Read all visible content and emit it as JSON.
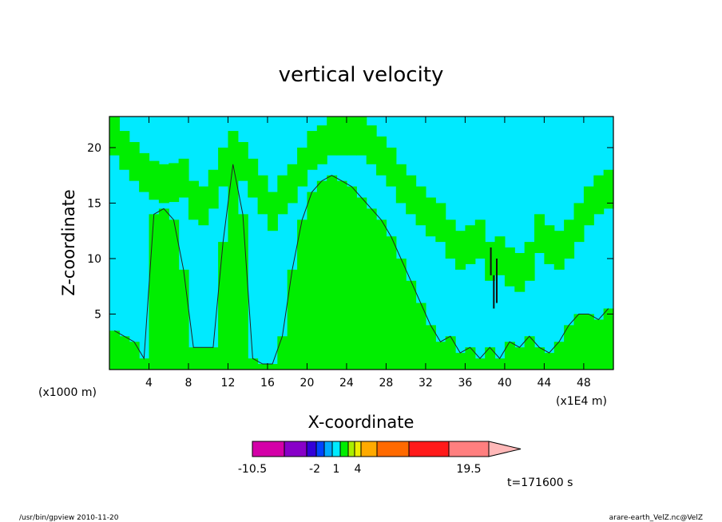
{
  "chart_data": {
    "type": "heatmap",
    "title": "vertical velocity",
    "xlabel": "X-coordinate",
    "ylabel": "Z-coordinate",
    "x_unit_left": "(x1000 m)",
    "x_unit_right": "(x1E4 m)",
    "xlim": [
      0,
      51
    ],
    "ylim": [
      0,
      22.8
    ],
    "xticks": [
      "4",
      "8",
      "12",
      "16",
      "20",
      "24",
      "28",
      "32",
      "36",
      "40",
      "44",
      "48"
    ],
    "yticks": [
      "5",
      "10",
      "15",
      "20"
    ],
    "colors": {
      "negative": "#00eaff",
      "positive": "#00ee00",
      "strong": "#111111",
      "contour": "#222222"
    },
    "columns": [
      {
        "x": 0.5,
        "top": 3.5,
        "tops": [
          22.8
        ]
      },
      {
        "x": 1.5,
        "top": 3.0,
        "tops": [
          21.5
        ]
      },
      {
        "x": 2.5,
        "top": 2.5,
        "tops": [
          20.5
        ]
      },
      {
        "x": 3.5,
        "top": 1.0,
        "tops": [
          19.5
        ]
      },
      {
        "x": 4.5,
        "top": 14.0,
        "tops": [
          18.8
        ]
      },
      {
        "x": 5.5,
        "top": 14.5,
        "tops": [
          18.5
        ]
      },
      {
        "x": 6.5,
        "top": 13.5,
        "tops": [
          18.6
        ]
      },
      {
        "x": 7.5,
        "top": 9.0,
        "tops": [
          19.0
        ]
      },
      {
        "x": 8.5,
        "top": 2.0,
        "tops": [
          17.0
        ]
      },
      {
        "x": 9.5,
        "top": 2.0,
        "tops": [
          16.5
        ]
      },
      {
        "x": 10.5,
        "top": 2.0,
        "tops": [
          18.0
        ]
      },
      {
        "x": 11.5,
        "top": 11.5,
        "tops": [
          20.0
        ]
      },
      {
        "x": 12.5,
        "top": 18.5,
        "tops": [
          21.5
        ]
      },
      {
        "x": 13.5,
        "top": 14.0,
        "tops": [
          20.5
        ]
      },
      {
        "x": 14.5,
        "top": 1.0,
        "tops": [
          19.0
        ]
      },
      {
        "x": 15.5,
        "top": 0.5,
        "tops": [
          17.5
        ]
      },
      {
        "x": 16.5,
        "top": 0.5,
        "tops": [
          16.0
        ]
      },
      {
        "x": 17.5,
        "top": 3.0,
        "tops": [
          17.5
        ]
      },
      {
        "x": 18.5,
        "top": 9.0,
        "tops": [
          18.5
        ]
      },
      {
        "x": 19.5,
        "top": 13.5,
        "tops": [
          20.0
        ]
      },
      {
        "x": 20.5,
        "top": 16.0,
        "tops": [
          21.5
        ]
      },
      {
        "x": 21.5,
        "top": 17.0,
        "tops": [
          22.0
        ]
      },
      {
        "x": 22.5,
        "top": 17.5,
        "tops": [
          22.8
        ]
      },
      {
        "x": 23.5,
        "top": 17.0,
        "tops": [
          22.8
        ]
      },
      {
        "x": 24.5,
        "top": 16.5,
        "tops": [
          22.8
        ]
      },
      {
        "x": 25.5,
        "top": 15.5,
        "tops": [
          22.8
        ]
      },
      {
        "x": 26.5,
        "top": 14.5,
        "tops": [
          22.0
        ]
      },
      {
        "x": 27.5,
        "top": 13.5,
        "tops": [
          21.0
        ]
      },
      {
        "x": 28.5,
        "top": 12.0,
        "tops": [
          20.0
        ]
      },
      {
        "x": 29.5,
        "top": 10.0,
        "tops": [
          18.5
        ]
      },
      {
        "x": 30.5,
        "top": 8.0,
        "tops": [
          17.5
        ]
      },
      {
        "x": 31.5,
        "top": 6.0,
        "tops": [
          16.5
        ]
      },
      {
        "x": 32.5,
        "top": 4.0,
        "tops": [
          15.5
        ]
      },
      {
        "x": 33.5,
        "top": 2.5,
        "tops": [
          15.0
        ]
      },
      {
        "x": 34.5,
        "top": 3.0,
        "tops": [
          13.5
        ]
      },
      {
        "x": 35.5,
        "top": 1.5,
        "tops": [
          12.5
        ]
      },
      {
        "x": 36.5,
        "top": 2.0,
        "tops": [
          13.0
        ]
      },
      {
        "x": 37.5,
        "top": 1.0,
        "tops": [
          13.5
        ]
      },
      {
        "x": 38.5,
        "top": 2.0,
        "tops": [
          11.5
        ]
      },
      {
        "x": 39.5,
        "top": 1.0,
        "tops": [
          12.0
        ]
      },
      {
        "x": 40.5,
        "top": 2.5,
        "tops": [
          11.0
        ]
      },
      {
        "x": 41.5,
        "top": 2.0,
        "tops": [
          10.5
        ]
      },
      {
        "x": 42.5,
        "top": 3.0,
        "tops": [
          11.5
        ]
      },
      {
        "x": 43.5,
        "top": 2.0,
        "tops": [
          14.0
        ]
      },
      {
        "x": 44.5,
        "top": 1.5,
        "tops": [
          13.0
        ]
      },
      {
        "x": 45.5,
        "top": 2.5,
        "tops": [
          12.5
        ]
      },
      {
        "x": 46.5,
        "top": 4.0,
        "tops": [
          13.5
        ]
      },
      {
        "x": 47.5,
        "top": 5.0,
        "tops": [
          15.0
        ]
      },
      {
        "x": 48.5,
        "top": 5.0,
        "tops": [
          16.5
        ]
      },
      {
        "x": 49.5,
        "top": 4.5,
        "tops": [
          17.5
        ]
      },
      {
        "x": 50.5,
        "top": 5.5,
        "tops": [
          18.0
        ]
      }
    ],
    "colorbar": {
      "colors": [
        "#d400a8",
        "#8800c8",
        "#3300d8",
        "#0044ff",
        "#00aaff",
        "#00eaff",
        "#00ee00",
        "#aaee00",
        "#eeee00",
        "#ffaa00",
        "#ff6a00",
        "#ff1a1a",
        "#ff7f7f",
        "#ffb8b8"
      ],
      "labels": [
        "-10.5",
        "-2",
        "1",
        "4",
        "19.5"
      ]
    }
  },
  "annotations": {
    "time": "t=171600 s",
    "footer_left": "/usr/bin/gpview   2010-11-20",
    "footer_right": "arare-earth_VelZ.nc@VelZ"
  }
}
